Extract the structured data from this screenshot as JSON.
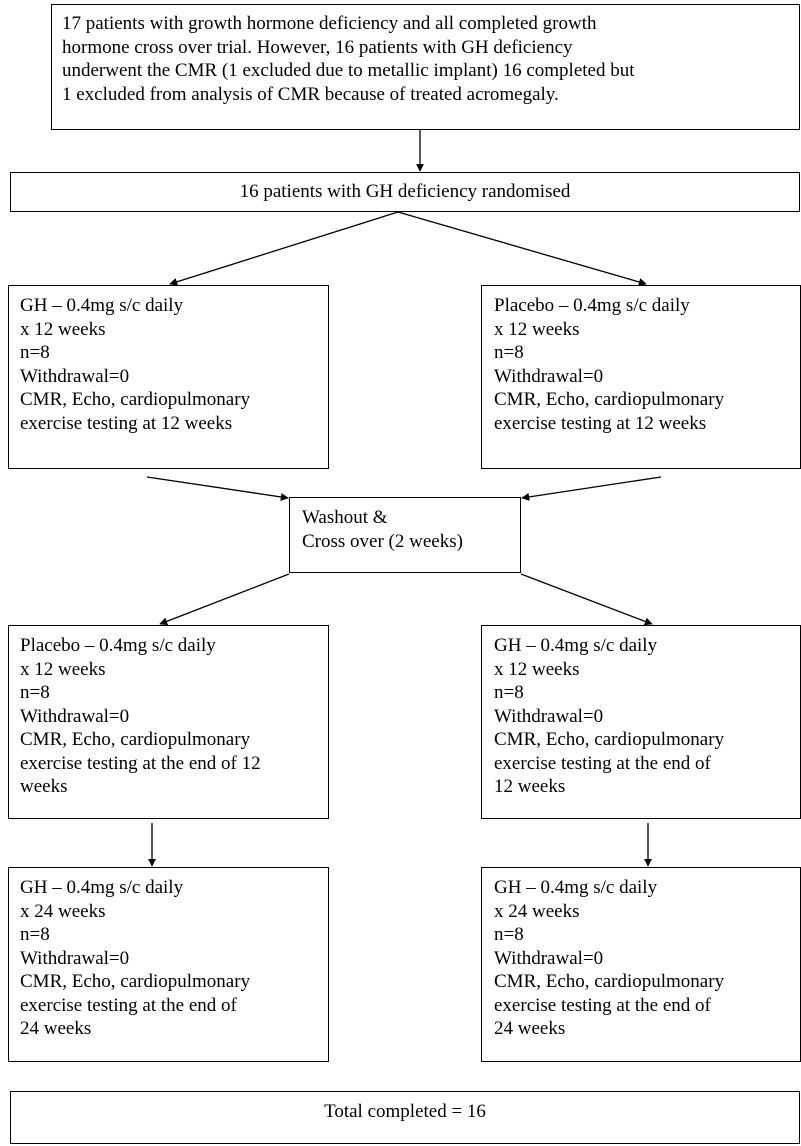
{
  "boxes": {
    "intro": {
      "lines": [
        "17 patients with growth hormone deficiency and all completed growth",
        "hormone cross over trial. However, 16 patients with GH deficiency",
        "underwent the CMR (1 excluded due to metallic implant) 16 completed but",
        "1 excluded from analysis of CMR because of treated acromegaly."
      ]
    },
    "randomised": {
      "text": "16 patients with GH deficiency randomised"
    },
    "phase1_left": {
      "lines": [
        "GH – 0.4mg s/c daily",
        " x 12 weeks",
        "n=8",
        "Withdrawal=0",
        "CMR, Echo, cardiopulmonary",
        "exercise testing at 12 weeks"
      ]
    },
    "phase1_right": {
      "lines": [
        "Placebo – 0.4mg s/c daily",
        " x 12 weeks",
        "n=8",
        "Withdrawal=0",
        "CMR, Echo, cardiopulmonary",
        "exercise testing at 12 weeks"
      ]
    },
    "washout": {
      "lines": [
        "Washout &",
        "Cross over (2 weeks)"
      ]
    },
    "phase2_left": {
      "lines": [
        "Placebo – 0.4mg s/c daily",
        " x 12 weeks",
        "n=8",
        "Withdrawal=0",
        "CMR, Echo, cardiopulmonary",
        "exercise testing at the end of 12",
        "weeks"
      ]
    },
    "phase2_right": {
      "lines": [
        "GH – 0.4mg s/c daily",
        " x 12 weeks",
        "n=8",
        "Withdrawal=0",
        "CMR, Echo, cardiopulmonary",
        "exercise testing at the end of",
        "12 weeks"
      ]
    },
    "phase3_left": {
      "lines": [
        "GH – 0.4mg s/c daily",
        " x 24 weeks",
        "n=8",
        "Withdrawal=0",
        "CMR, Echo, cardiopulmonary",
        "exercise testing at the end of",
        "24 weeks"
      ]
    },
    "phase3_right": {
      "lines": [
        "GH – 0.4mg s/c daily",
        " x 24 weeks",
        "n=8",
        "Withdrawal=0",
        "CMR, Echo, cardiopulmonary",
        "exercise testing at the end of",
        "24 weeks"
      ]
    },
    "total": {
      "text": "Total completed = 16"
    }
  }
}
